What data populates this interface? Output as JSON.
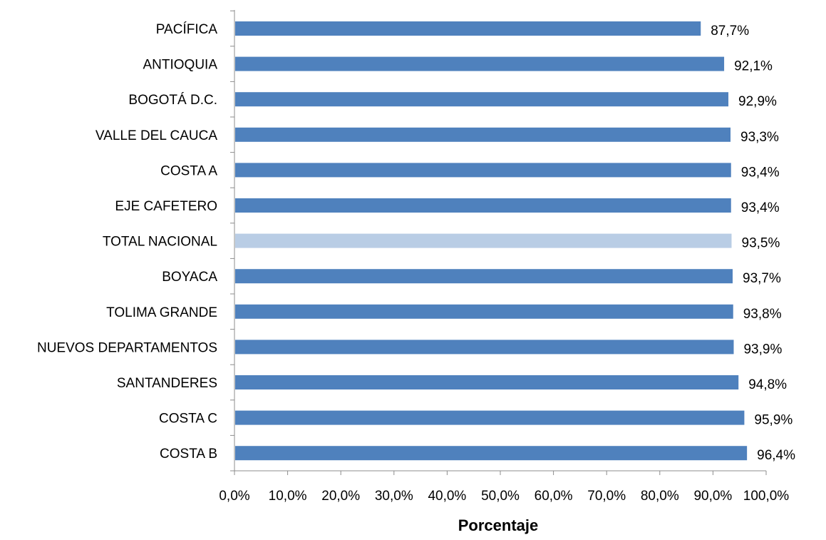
{
  "chart_data": {
    "type": "bar",
    "orientation": "horizontal",
    "categories": [
      "PACÍFICA",
      "ANTIOQUIA",
      "BOGOTÁ D.C.",
      "VALLE DEL CAUCA",
      "COSTA A",
      "EJE CAFETERO",
      "TOTAL NACIONAL",
      "BOYACA",
      "TOLIMA GRANDE",
      "NUEVOS DEPARTAMENTOS",
      "SANTANDERES",
      "COSTA C",
      "COSTA B"
    ],
    "values": [
      87.7,
      92.1,
      92.9,
      93.3,
      93.4,
      93.4,
      93.5,
      93.7,
      93.8,
      93.9,
      94.8,
      95.9,
      96.4
    ],
    "data_labels": [
      "87,7%",
      "92,1%",
      "92,9%",
      "93,3%",
      "93,4%",
      "93,4%",
      "93,5%",
      "93,7%",
      "93,8%",
      "93,9%",
      "94,8%",
      "95,9%",
      "96,4%"
    ],
    "highlight_category": "TOTAL NACIONAL",
    "colors": {
      "bar": "#4F81BD",
      "highlight": "#B9CDE5",
      "axis": "#8C8C8C"
    },
    "xlim": [
      0,
      100
    ],
    "xticks": [
      0,
      10,
      20,
      30,
      40,
      50,
      60,
      70,
      80,
      90,
      100
    ],
    "xtick_labels": [
      "0,0%",
      "10,0%",
      "20,0%",
      "30,0%",
      "40,0%",
      "50,0%",
      "60,0%",
      "70,0%",
      "80,0%",
      "90,0%",
      "100,0%"
    ],
    "xlabel": "Porcentaje",
    "ylabel": "",
    "title": "",
    "grid": false,
    "legend": "none"
  }
}
